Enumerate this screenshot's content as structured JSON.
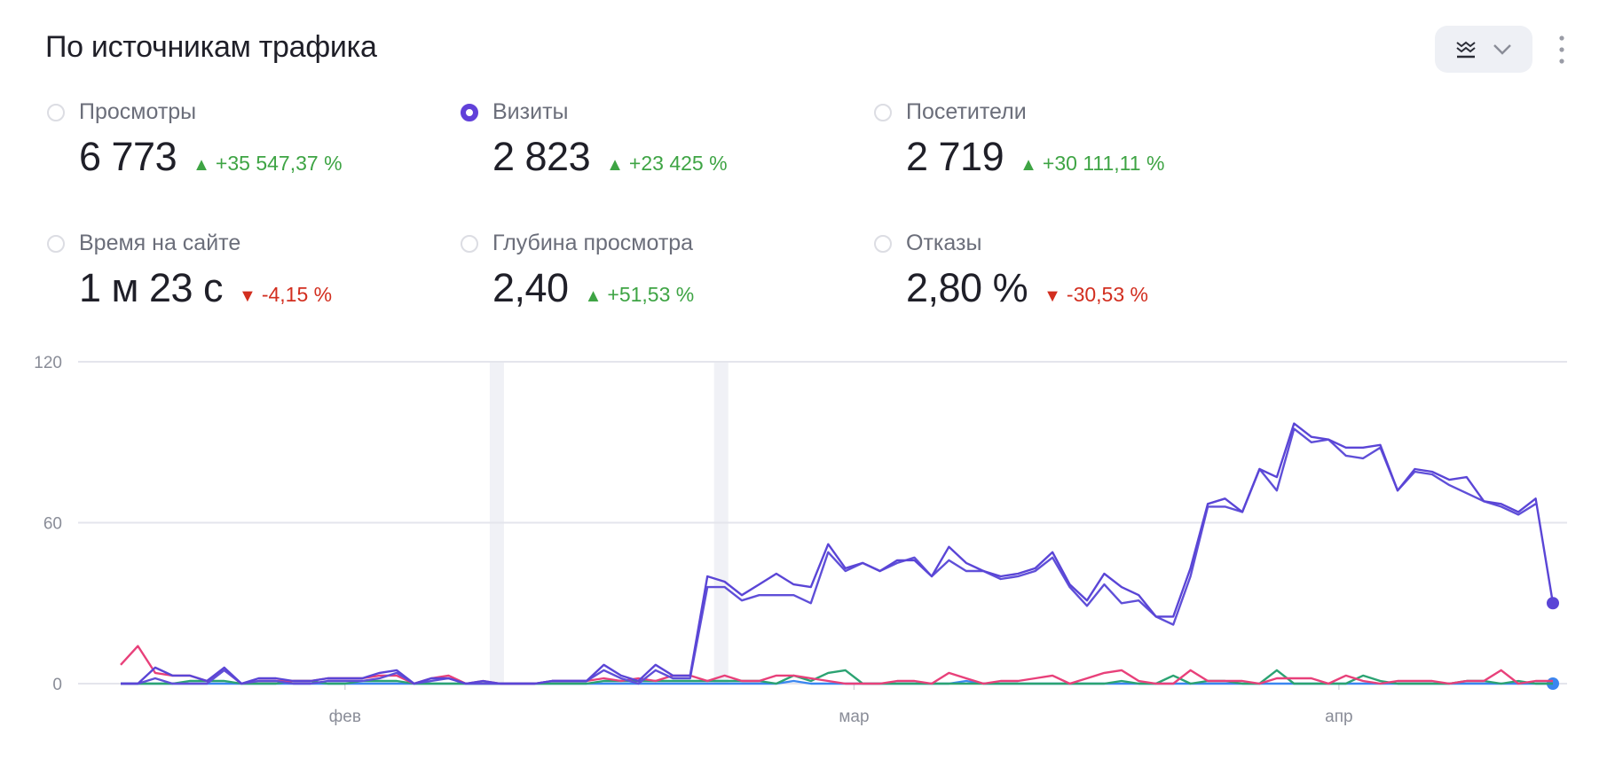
{
  "header": {
    "title": "По источникам трафика"
  },
  "metrics": [
    {
      "label": "Просмотры",
      "value": "6 773",
      "delta": "+35 547,37 %",
      "trend": "up",
      "selected": false
    },
    {
      "label": "Визиты",
      "value": "2 823",
      "delta": "+23 425 %",
      "trend": "up",
      "selected": true
    },
    {
      "label": "Посетители",
      "value": "2 719",
      "delta": "+30 111,11 %",
      "trend": "up",
      "selected": false
    },
    {
      "label": "Время на сайте",
      "value": "1 м 23 с",
      "delta": "-4,15 %",
      "trend": "down",
      "selected": false
    },
    {
      "label": "Глубина просмотра",
      "value": "2,40",
      "delta": "+51,53 %",
      "trend": "up",
      "selected": false
    },
    {
      "label": "Отказы",
      "value": "2,80 %",
      "delta": "-30,53 %",
      "trend": "down",
      "selected": false
    }
  ],
  "toolbar": {
    "view_icon": "chart-stack-icon",
    "dropdown_icon": "chevron-down-icon",
    "more_icon": "more-vertical-icon"
  },
  "chart_data": {
    "type": "line",
    "ylim": [
      0,
      120
    ],
    "yticks": [
      "0",
      "60",
      "120"
    ],
    "xticks": [
      {
        "label": "фев",
        "at": 13
      },
      {
        "label": "мар",
        "at": 42.5
      },
      {
        "label": "апр",
        "at": 70.6
      }
    ],
    "highlight_bands": [
      21.8,
      34.8
    ],
    "grid": true,
    "series": [
      {
        "name": "Визиты (1)",
        "color": "#5a45d6",
        "end_marker": true,
        "values": [
          0,
          0,
          6,
          3,
          3,
          1,
          6,
          0,
          2,
          2,
          1,
          1,
          2,
          2,
          2,
          4,
          5,
          0,
          2,
          2,
          0,
          1,
          0,
          0,
          0,
          1,
          1,
          1,
          7,
          3,
          1,
          7,
          3,
          3,
          40,
          38,
          33,
          37,
          41,
          37,
          36,
          52,
          43,
          45,
          42,
          46,
          46,
          40,
          51,
          45,
          42,
          40,
          41,
          43,
          49,
          37,
          31,
          41,
          36,
          33,
          25,
          25,
          43,
          67,
          69,
          64,
          80,
          77,
          97,
          92,
          91,
          88,
          88,
          89,
          72,
          80,
          79,
          76,
          77,
          68,
          67,
          64,
          69,
          30
        ]
      },
      {
        "name": "Визиты (2)",
        "color": "#5f4fd8",
        "end_marker": false,
        "values": [
          0,
          0,
          2,
          0,
          0,
          0,
          5,
          0,
          1,
          1,
          0,
          0,
          1,
          1,
          1,
          2,
          4,
          0,
          1,
          2,
          0,
          0,
          0,
          0,
          0,
          1,
          1,
          1,
          5,
          2,
          0,
          5,
          2,
          2,
          36,
          36,
          31,
          33,
          33,
          33,
          30,
          49,
          42,
          45,
          42,
          45,
          47,
          40,
          46,
          42,
          42,
          39,
          40,
          42,
          47,
          36,
          29,
          37,
          30,
          31,
          25,
          22,
          40,
          66,
          66,
          64,
          80,
          72,
          95,
          90,
          91,
          85,
          84,
          88,
          72,
          79,
          78,
          74,
          71,
          68,
          66,
          63,
          67,
          null
        ]
      },
      {
        "name": "Визиты (3)",
        "color": "#e8407a",
        "end_marker": false,
        "values": [
          7,
          14,
          4,
          3,
          3,
          1,
          5,
          0,
          1,
          1,
          1,
          1,
          2,
          2,
          2,
          3,
          3,
          0,
          2,
          3,
          0,
          1,
          0,
          0,
          0,
          1,
          1,
          1,
          2,
          1,
          2,
          1,
          3,
          3,
          1,
          3,
          1,
          1,
          3,
          3,
          2,
          1,
          0,
          0,
          0,
          1,
          1,
          0,
          4,
          2,
          0,
          1,
          1,
          2,
          3,
          0,
          2,
          4,
          5,
          1,
          0,
          0,
          5,
          1,
          1,
          1,
          0,
          2,
          2,
          2,
          0,
          3,
          1,
          0,
          1,
          1,
          1,
          0,
          1,
          1,
          5,
          0,
          1,
          1
        ]
      },
      {
        "name": "Визиты (4)",
        "color": "#2ba372",
        "end_marker": false,
        "values": [
          0,
          0,
          0,
          0,
          1,
          1,
          1,
          0,
          0,
          0,
          1,
          1,
          0,
          0,
          1,
          1,
          1,
          0,
          0,
          0,
          0,
          0,
          0,
          0,
          0,
          0,
          0,
          0,
          1,
          1,
          1,
          1,
          1,
          1,
          1,
          1,
          1,
          1,
          0,
          3,
          1,
          4,
          5,
          0,
          0,
          0,
          0,
          0,
          0,
          0,
          0,
          0,
          0,
          0,
          0,
          0,
          0,
          0,
          1,
          0,
          0,
          3,
          0,
          1,
          1,
          0,
          0,
          5,
          0,
          0,
          0,
          0,
          3,
          1,
          0,
          0,
          0,
          0,
          1,
          1,
          0,
          1,
          0,
          0
        ]
      },
      {
        "name": "Визиты (5)",
        "color": "#3a86f0",
        "end_marker": true,
        "values": [
          0,
          0,
          0,
          0,
          0,
          0,
          0,
          0,
          0,
          0,
          0,
          0,
          0,
          0,
          0,
          0,
          0,
          0,
          0,
          0,
          0,
          0,
          0,
          0,
          0,
          0,
          0,
          0,
          0,
          0,
          0,
          0,
          0,
          0,
          0,
          0,
          0,
          0,
          0,
          1,
          0,
          0,
          0,
          0,
          0,
          0,
          0,
          0,
          0,
          1,
          0,
          0,
          0,
          0,
          0,
          0,
          0,
          0,
          0,
          0,
          0,
          0,
          0,
          0,
          0,
          0,
          0,
          0,
          0,
          0,
          0,
          0,
          0,
          0,
          0,
          0,
          0,
          0,
          0,
          0,
          0,
          0,
          0,
          0
        ]
      }
    ]
  }
}
